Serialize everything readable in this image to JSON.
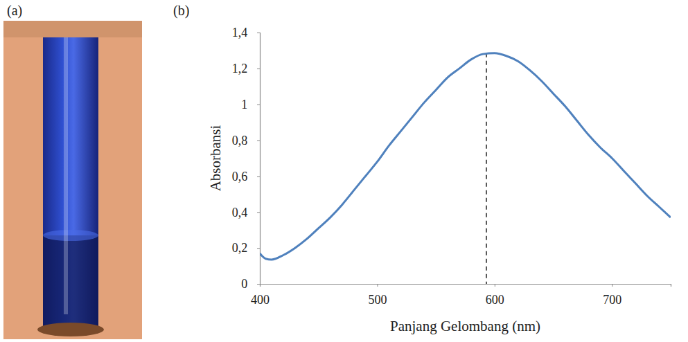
{
  "chart_data": {
    "type": "line",
    "panel_labels": [
      "(a)",
      "(b)"
    ],
    "x_label": "Panjang Gelombang (nm)",
    "y_label": "Absorbansi",
    "x": [
      400,
      405,
      410,
      420,
      430,
      440,
      450,
      460,
      470,
      480,
      490,
      500,
      510,
      520,
      530,
      540,
      550,
      560,
      570,
      580,
      590,
      600,
      610,
      620,
      630,
      640,
      650,
      660,
      670,
      680,
      690,
      700,
      710,
      720,
      730,
      740,
      750
    ],
    "values": [
      0.17,
      0.14,
      0.135,
      0.16,
      0.2,
      0.25,
      0.31,
      0.37,
      0.44,
      0.52,
      0.6,
      0.68,
      0.77,
      0.85,
      0.93,
      1.01,
      1.08,
      1.15,
      1.2,
      1.25,
      1.28,
      1.285,
      1.27,
      1.24,
      1.19,
      1.13,
      1.06,
      0.99,
      0.91,
      0.83,
      0.76,
      0.7,
      0.63,
      0.56,
      0.49,
      0.43,
      0.37
    ],
    "color": "#4f81bd",
    "line_style": "solid",
    "peak": {
      "x": 593,
      "y": 1.285
    },
    "xlim": [
      400,
      750
    ],
    "xticks": [
      400,
      500,
      600,
      700
    ],
    "ylim": [
      0,
      1.4
    ],
    "yticks": [
      0,
      {
        "value": 0.2,
        "label": "0,2"
      },
      {
        "value": 0.4,
        "label": "0,4"
      },
      {
        "value": 0.6,
        "label": "0,6"
      },
      {
        "value": 0.8,
        "label": "0,8"
      },
      1,
      {
        "value": 1.2,
        "label": "1,2"
      },
      {
        "value": 1.4,
        "label": "1,4"
      }
    ],
    "grid": false
  }
}
